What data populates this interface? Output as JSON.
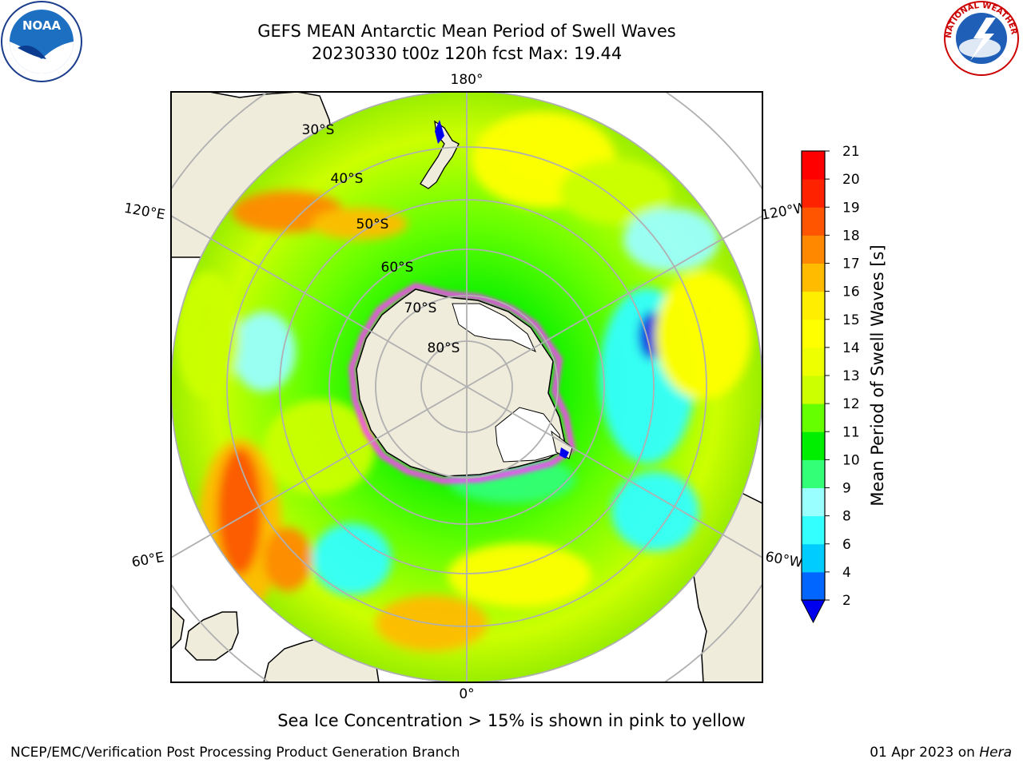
{
  "header": {
    "title_line1": "GEFS MEAN Antarctic Mean Period of Swell Waves",
    "title_line2": "20230330 t00z 120h fcst   Max: 19.44"
  },
  "logos": {
    "left": "noara-logo",
    "left_text": "NOAA",
    "right": "nws-logo",
    "right_text": "NATIONAL WEATHER SERVICE"
  },
  "map": {
    "projection": "south-polar-stereographic",
    "longitude_labels": [
      "180°",
      "120°E",
      "120°W",
      "60°E",
      "60°W",
      "0°"
    ],
    "latitude_labels": [
      "30°S",
      "40°S",
      "50°S",
      "60°S",
      "70°S",
      "80°S"
    ],
    "land_color": "#efecdc",
    "ice_color": "#ff40ff"
  },
  "colorbar": {
    "label": "Mean Period of Swell Waves [s]",
    "ticks": [
      "2",
      "4",
      "6",
      "8",
      "9",
      "10",
      "11",
      "12",
      "13",
      "14",
      "15",
      "16",
      "17",
      "18",
      "19",
      "20",
      "21"
    ],
    "colors": [
      "#0066ff",
      "#00ccff",
      "#33ffff",
      "#99ffff",
      "#33ff77",
      "#00ee00",
      "#66ff00",
      "#ccff00",
      "#eeff00",
      "#ffff00",
      "#ffee00",
      "#ffbb00",
      "#ff8800",
      "#ff5500",
      "#ff2200",
      "#ff0000"
    ],
    "under_color": "#0000ee"
  },
  "notes": {
    "sea_ice": "Sea Ice Concentration > 15% is shown in pink to yellow"
  },
  "footer": {
    "left": "NCEP/EMC/Verification Post Processing Product Generation Branch",
    "date": "01 Apr 2023 on ",
    "machine": "Hera"
  }
}
